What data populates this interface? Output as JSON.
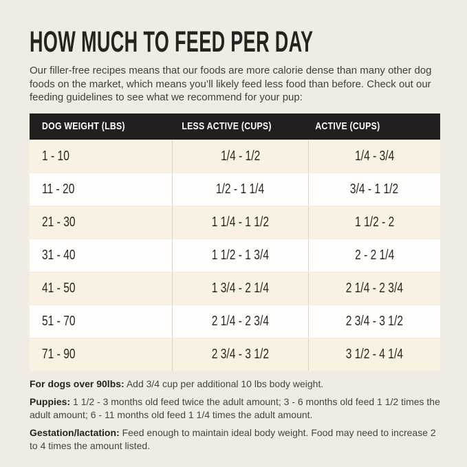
{
  "page": {
    "title": "HOW MUCH TO FEED PER DAY",
    "intro": "Our filler-free recipes means that our foods are more calorie dense than many other dog foods on the market, which means you’ll likely feed less food than before. Check out our feeding guidelines to see what we recommend for your pup:"
  },
  "table": {
    "headers": [
      "DOG WEIGHT (LBS)",
      "LESS ACTIVE (CUPS)",
      "ACTIVE (CUPS)"
    ],
    "rows": [
      [
        "1 - 10",
        "1/4 - 1/2",
        "1/4 - 3/4"
      ],
      [
        "11 - 20",
        "1/2 - 1 1/4",
        "3/4 - 1 1/2"
      ],
      [
        "21 - 30",
        "1 1/4 - 1 1/2",
        "1 1/2 - 2"
      ],
      [
        "31 - 40",
        "1 1/2 - 1 3/4",
        "2 - 2 1/4"
      ],
      [
        "41 - 50",
        "1 3/4 - 2 1/4",
        "2 1/4 - 2 3/4"
      ],
      [
        "51 - 70",
        "2 1/4 - 2 3/4",
        "2 3/4 - 3 1/2"
      ],
      [
        "71 - 90",
        "2 3/4 - 3 1/2",
        "3 1/2 - 4 1/4"
      ]
    ]
  },
  "notes": [
    {
      "label": "For dogs over 90lbs:",
      "text": " Add 3/4 cup per additional 10 lbs body weight."
    },
    {
      "label": "Puppies:",
      "text": " 1 1/2 - 3 months old feed twice the adult amount; 3 - 6 months old feed 1 1/2 times the adult amount; 6 - 11 months old feed 1 1/4 times the adult amount."
    },
    {
      "label": "Gestation/lactation:",
      "text": " Feed enough to maintain ideal body weight. Food may need to increase 2 to 4 times the amount listed."
    }
  ],
  "colors": {
    "page_background": "#f1ece3",
    "header_background": "#231f1e",
    "header_text": "#ffffff",
    "row_cream": "#f9f1e2",
    "row_white": "#fffefc",
    "divider": "#d7d3ca",
    "text_dark": "#262220"
  }
}
